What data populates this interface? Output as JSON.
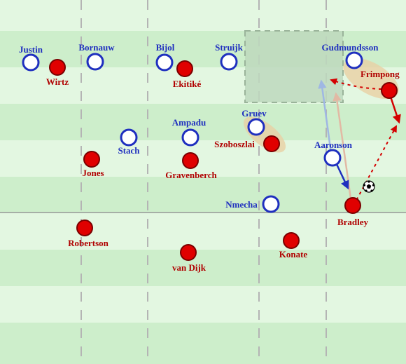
{
  "colors": {
    "stripe_light": "#e3f7e1",
    "stripe_dark": "#cdeecb",
    "line": "#b4b4b4",
    "blue": "#1f2fbf",
    "red": "#d40000",
    "red_label": "#b00000",
    "zone": "#bdd8bd",
    "ellipse": "#e8cfa4"
  },
  "players": {
    "justin": {
      "name": "Justin",
      "team": "blue"
    },
    "bornauw": {
      "name": "Bornauw",
      "team": "blue"
    },
    "bijol": {
      "name": "Bijol",
      "team": "blue"
    },
    "struijk": {
      "name": "Struijk",
      "team": "blue"
    },
    "gudmundsson": {
      "name": "Gudmundsson",
      "team": "blue"
    },
    "gruev": {
      "name": "Gruev",
      "team": "blue"
    },
    "ampadu": {
      "name": "Ampadu",
      "team": "blue"
    },
    "stach": {
      "name": "Stach",
      "team": "blue"
    },
    "aaronson": {
      "name": "Aaronson",
      "team": "blue"
    },
    "nmecha": {
      "name": "Nmecha",
      "team": "blue"
    },
    "wirtz": {
      "name": "Wirtz",
      "team": "red"
    },
    "ekitike": {
      "name": "Ekitiké",
      "team": "red"
    },
    "frimpong": {
      "name": "Frimpong",
      "team": "red"
    },
    "szoboszlai": {
      "name": "Szoboszlai",
      "team": "red"
    },
    "jones": {
      "name": "Jones",
      "team": "red"
    },
    "gravenberch": {
      "name": "Gravenberch",
      "team": "red"
    },
    "bradley": {
      "name": "Bradley",
      "team": "red"
    },
    "robertson": {
      "name": "Robertson",
      "team": "red"
    },
    "van_dijk": {
      "name": "van Dijk",
      "team": "red"
    },
    "konate": {
      "name": "Konate",
      "team": "red"
    }
  },
  "ball_icon": "soccer-ball-icon"
}
